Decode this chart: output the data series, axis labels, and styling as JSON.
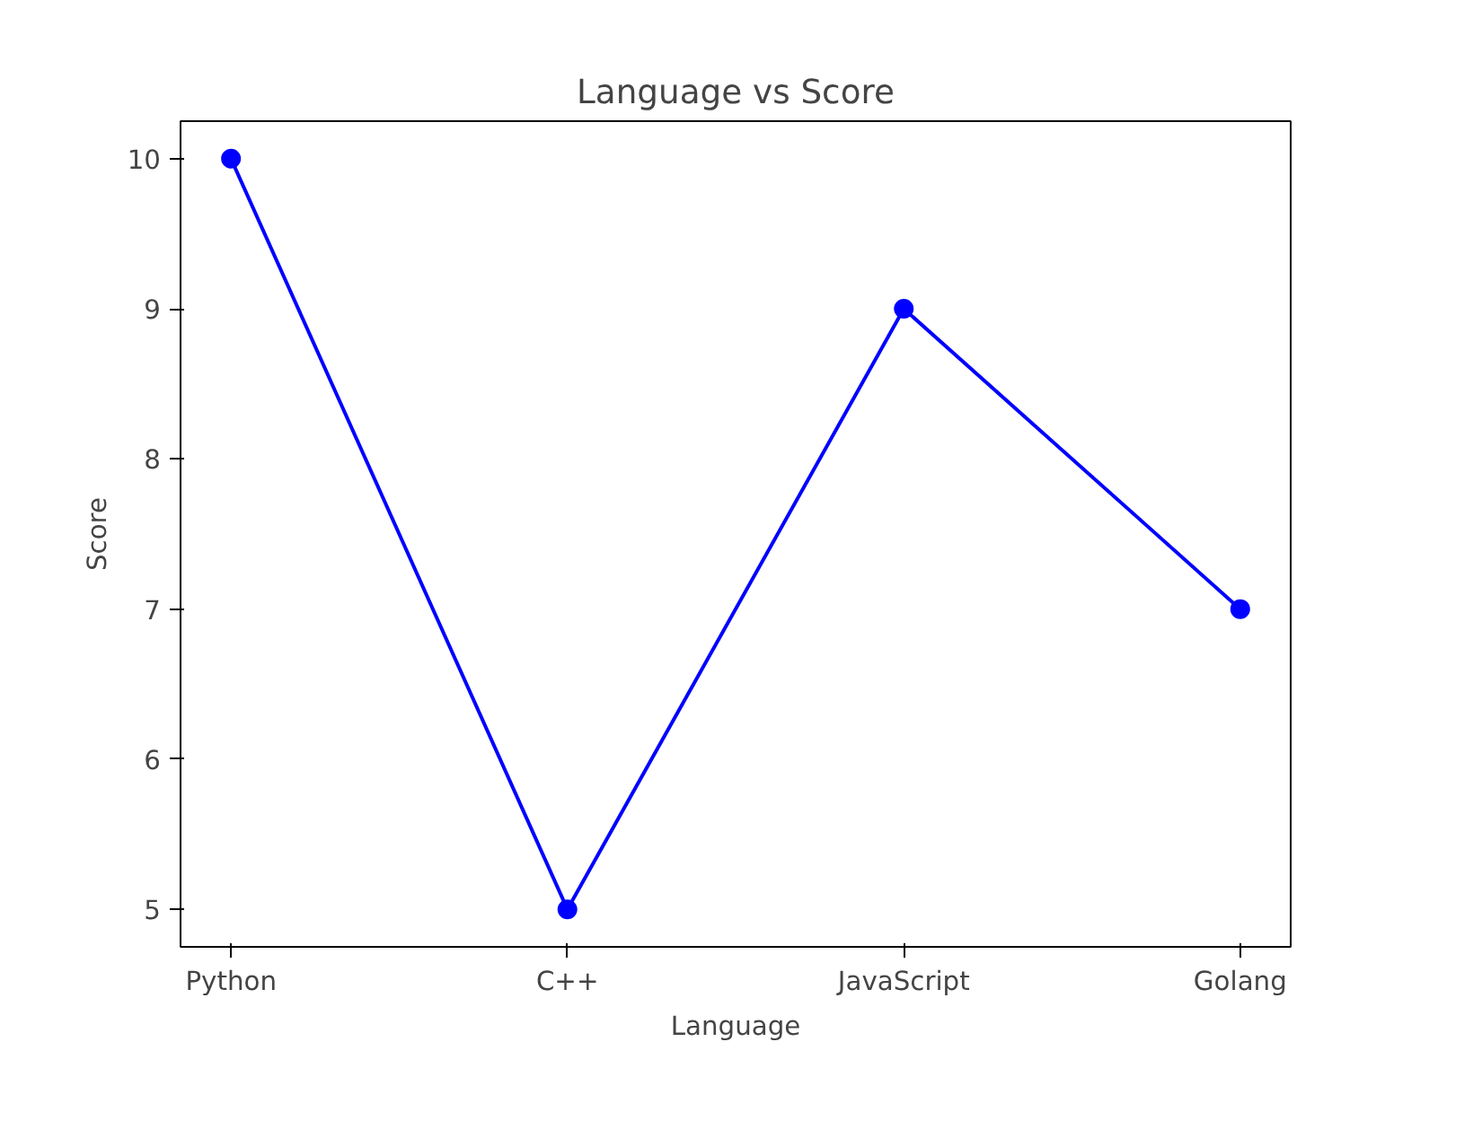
{
  "chart_data": {
    "type": "line",
    "title": "Language vs Score",
    "xlabel": "Language",
    "ylabel": "Score",
    "categories": [
      "Python",
      "C++",
      "JavaScript",
      "Golang"
    ],
    "series": [
      {
        "color": "#0000ff",
        "values": [
          10,
          5,
          9,
          7
        ]
      }
    ],
    "ylim": [
      4.75,
      10.25
    ],
    "yticks": [
      5,
      6,
      7,
      8,
      9,
      10
    ],
    "marker": "circle",
    "line_style": "solid",
    "grid": false
  }
}
